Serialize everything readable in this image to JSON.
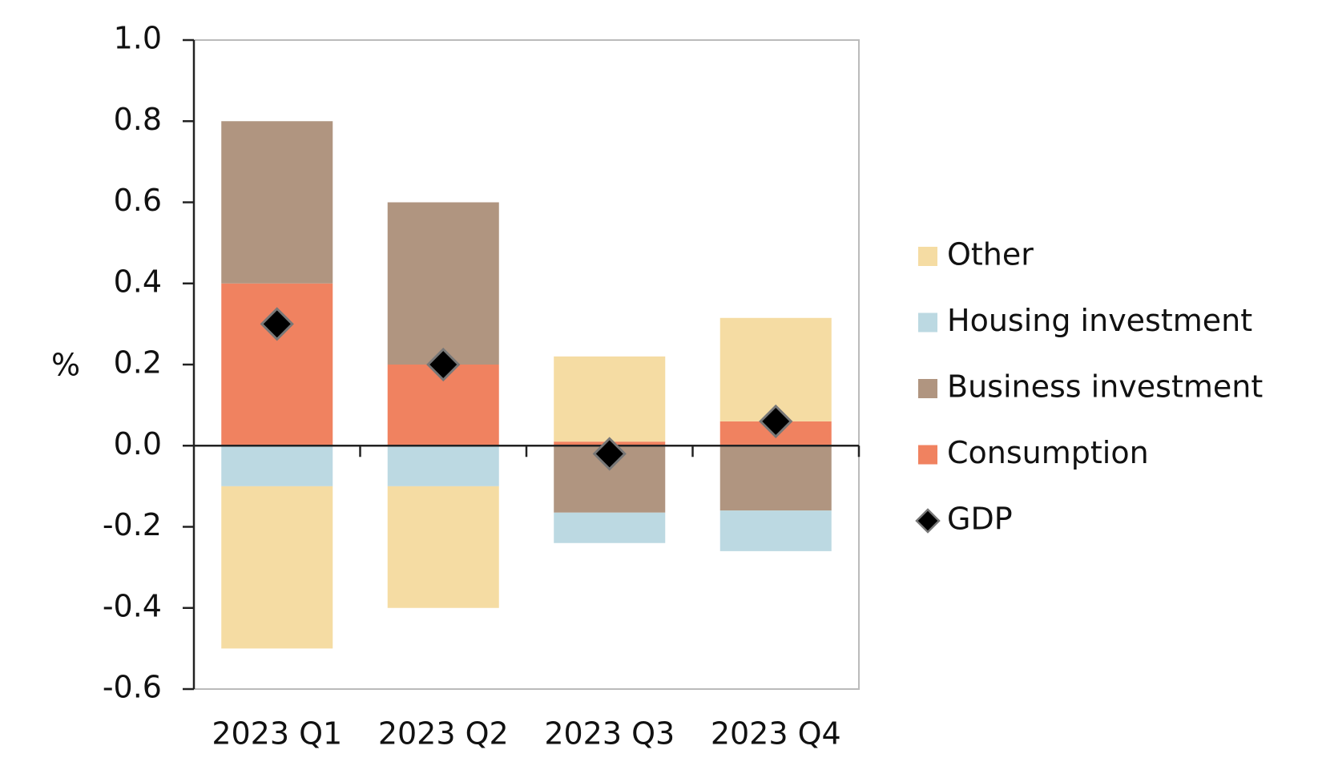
{
  "chart_data": {
    "type": "bar",
    "stacked": true,
    "y_label": "%",
    "categories": [
      "2023 Q1",
      "2023 Q2",
      "2023 Q3",
      "2023 Q4"
    ],
    "series": [
      {
        "name": "Other",
        "color": "#f5dca3",
        "values": [
          -0.4,
          -0.3,
          0.21,
          0.255
        ]
      },
      {
        "name": "Housing investment",
        "color": "#bcd9e2",
        "values": [
          -0.1,
          -0.1,
          -0.075,
          -0.1
        ]
      },
      {
        "name": "Business investment",
        "color": "#b09580",
        "values": [
          0.4,
          0.4,
          -0.165,
          -0.16
        ]
      },
      {
        "name": "Consumption",
        "color": "#f08260",
        "values": [
          0.4,
          0.2,
          0.01,
          0.06
        ]
      },
      {
        "name": "GDP",
        "type": "scatter",
        "marker": "diamond",
        "color": "#000000",
        "values": [
          0.3,
          0.2,
          -0.02,
          0.06
        ]
      }
    ],
    "ylim": [
      -0.6,
      1.0
    ],
    "yticks": [
      -0.6,
      -0.4,
      -0.2,
      {
        "value": 0,
        "label": "0.0"
      },
      0.2,
      0.4,
      0.6,
      0.8,
      {
        "value": 1,
        "label": "1.0"
      }
    ],
    "legend": "right"
  }
}
